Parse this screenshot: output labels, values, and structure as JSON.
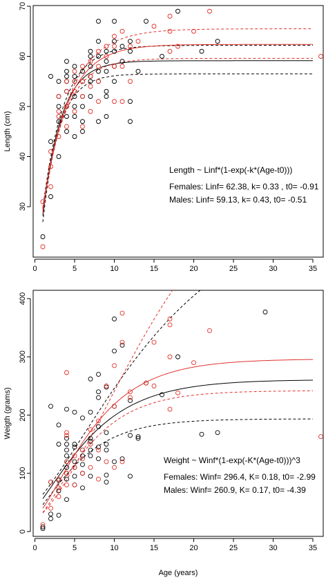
{
  "colors": {
    "females": "#e0302a",
    "males": "#000000"
  },
  "chart_data": [
    {
      "type": "scatter",
      "xlabel": "",
      "ylabel": "Length (cm)",
      "xlim": [
        0,
        36
      ],
      "ylim": [
        20,
        70
      ],
      "xticks": [
        0,
        5,
        10,
        15,
        20,
        25,
        30,
        35
      ],
      "yticks": [
        30,
        40,
        50,
        60,
        70
      ],
      "xtick_labels": [
        "0",
        "5",
        "10",
        "15",
        "20",
        "25",
        "30",
        "35"
      ],
      "ytick_labels": [
        "30",
        "40",
        "50",
        "60",
        "70"
      ],
      "annotations": [
        "Length ~ Linf*(1-exp(-k*(Age-t0)))",
        "Females: Linf= 62.38, k= 0.33 , t0= -0.91",
        "Males: Linf= 59.13, k= 0.43, t0= -0.51"
      ],
      "model": {
        "form": "vb_length",
        "xmax": 35
      },
      "curves": [
        {
          "group": "Males",
          "style": "solid",
          "params": {
            "inf": 59.13,
            "k": 0.43,
            "t0": -0.51
          }
        },
        {
          "group": "Males",
          "style": "dashed",
          "params": {
            "inf": 56.5,
            "k": 0.48,
            "t0": -0.35
          }
        },
        {
          "group": "Males",
          "style": "dashed",
          "params": {
            "inf": 62.2,
            "k": 0.38,
            "t0": -0.7
          }
        },
        {
          "group": "Females",
          "style": "solid",
          "params": {
            "inf": 62.38,
            "k": 0.33,
            "t0": -0.91
          }
        },
        {
          "group": "Females",
          "style": "dashed",
          "params": {
            "inf": 59.6,
            "k": 0.37,
            "t0": -0.78
          }
        },
        {
          "group": "Females",
          "style": "dashed",
          "params": {
            "inf": 65.5,
            "k": 0.29,
            "t0": -1.1
          }
        }
      ],
      "series": [
        {
          "group": "Males",
          "points": [
            [
              1,
              24
            ],
            [
              2,
              32
            ],
            [
              2,
              43
            ],
            [
              2,
              56
            ],
            [
              3,
              40
            ],
            [
              3,
              47
            ],
            [
              3,
              50
            ],
            [
              3,
              52
            ],
            [
              3,
              55
            ],
            [
              4,
              45
            ],
            [
              4,
              48
            ],
            [
              4,
              50
            ],
            [
              4,
              53
            ],
            [
              4,
              55
            ],
            [
              4,
              56
            ],
            [
              4,
              57
            ],
            [
              4,
              59
            ],
            [
              5,
              44
            ],
            [
              5,
              48
            ],
            [
              5,
              50
            ],
            [
              5,
              52
            ],
            [
              5,
              55
            ],
            [
              5,
              56
            ],
            [
              5,
              58
            ],
            [
              6,
              45
            ],
            [
              6,
              47
            ],
            [
              6,
              50
            ],
            [
              6,
              52
            ],
            [
              6,
              55
            ],
            [
              6,
              57
            ],
            [
              7,
              52
            ],
            [
              7,
              55
            ],
            [
              7,
              56
            ],
            [
              7,
              58
            ],
            [
              7,
              60
            ],
            [
              7,
              61
            ],
            [
              8,
              47
            ],
            [
              8,
              55
            ],
            [
              8,
              57
            ],
            [
              8,
              60
            ],
            [
              8,
              63
            ],
            [
              8,
              67
            ],
            [
              9,
              48
            ],
            [
              9,
              52
            ],
            [
              9,
              53
            ],
            [
              9,
              57
            ],
            [
              9,
              59
            ],
            [
              9,
              61
            ],
            [
              10,
              55
            ],
            [
              10,
              58
            ],
            [
              10,
              61
            ],
            [
              10,
              63
            ],
            [
              10,
              67
            ],
            [
              11,
              59
            ],
            [
              11,
              62
            ],
            [
              12,
              47
            ],
            [
              12,
              51
            ],
            [
              12,
              61
            ],
            [
              12,
              63
            ],
            [
              13,
              57
            ],
            [
              14,
              67
            ],
            [
              16,
              60
            ],
            [
              18,
              69
            ],
            [
              21,
              61
            ],
            [
              23,
              63
            ]
          ]
        },
        {
          "group": "Females",
          "points": [
            [
              1,
              22
            ],
            [
              1,
              31
            ],
            [
              2,
              34
            ],
            [
              2,
              38
            ],
            [
              2,
              41
            ],
            [
              3,
              44
            ],
            [
              3,
              48
            ],
            [
              3,
              49
            ],
            [
              3,
              52
            ],
            [
              4,
              46
            ],
            [
              4,
              50
            ],
            [
              4,
              53
            ],
            [
              4,
              55
            ],
            [
              5,
              49
            ],
            [
              5,
              53
            ],
            [
              5,
              55
            ],
            [
              5,
              57
            ],
            [
              6,
              46
            ],
            [
              6,
              52
            ],
            [
              6,
              55
            ],
            [
              6,
              58
            ],
            [
              7,
              49
            ],
            [
              7,
              54
            ],
            [
              7,
              56
            ],
            [
              7,
              59
            ],
            [
              8,
              51
            ],
            [
              8,
              55
            ],
            [
              8,
              58
            ],
            [
              8,
              61
            ],
            [
              9,
              60
            ],
            [
              9,
              62
            ],
            [
              10,
              51
            ],
            [
              10,
              58
            ],
            [
              10,
              62
            ],
            [
              10,
              64
            ],
            [
              11,
              51
            ],
            [
              11,
              58
            ],
            [
              11,
              65
            ],
            [
              12,
              55
            ],
            [
              12,
              62
            ],
            [
              13,
              63
            ],
            [
              15,
              66
            ],
            [
              17,
              61
            ],
            [
              17,
              65
            ],
            [
              17,
              68
            ],
            [
              18,
              62
            ],
            [
              20,
              65
            ],
            [
              22,
              69
            ],
            [
              36,
              60
            ]
          ]
        }
      ]
    },
    {
      "type": "scatter",
      "xlabel": "Age (years)",
      "ylabel": "Weigth (grams)",
      "xlim": [
        0,
        36
      ],
      "ylim": [
        0,
        420
      ],
      "xticks": [
        0,
        5,
        10,
        15,
        20,
        25,
        30,
        35
      ],
      "yticks": [
        0,
        100,
        200,
        300,
        400
      ],
      "xtick_labels": [
        "0",
        "5",
        "10",
        "15",
        "20",
        "25",
        "30",
        "35"
      ],
      "ytick_labels": [
        "0",
        "100",
        "200",
        "300",
        "400"
      ],
      "annotations": [
        "Weight ~ Winf*(1-exp(-K*(Age-t0)))^3",
        "Females: Winf= 296.4, K= 0.18, t0= -2.99",
        "Males: Winf= 260.9, K= 0.17, t0= -4.39"
      ],
      "model": {
        "form": "vb_weight",
        "xmax": 35
      },
      "curves": [
        {
          "group": "Males",
          "style": "solid",
          "params": {
            "inf": 260.9,
            "k": 0.17,
            "t0": -4.39
          }
        },
        {
          "group": "Males",
          "style": "dashed",
          "params": {
            "inf": 193.5,
            "k": 0.21,
            "t0": -3.6
          }
        },
        {
          "group": "Males",
          "style": "dashed",
          "params": {
            "inf": 560,
            "k": 0.085,
            "t0": -6.8
          }
        },
        {
          "group": "Females",
          "style": "solid",
          "params": {
            "inf": 296.4,
            "k": 0.18,
            "t0": -2.99
          }
        },
        {
          "group": "Females",
          "style": "dashed",
          "params": {
            "inf": 242,
            "k": 0.2,
            "t0": -2.6
          }
        },
        {
          "group": "Females",
          "style": "dashed",
          "params": {
            "inf": 700,
            "k": 0.085,
            "t0": -4.2
          }
        }
      ],
      "series": [
        {
          "group": "Males",
          "points": [
            [
              1,
              5
            ],
            [
              1,
              8
            ],
            [
              2,
              22
            ],
            [
              2,
              30
            ],
            [
              2,
              85
            ],
            [
              2,
              215
            ],
            [
              3,
              28
            ],
            [
              3,
              70
            ],
            [
              3,
              88
            ],
            [
              3,
              150
            ],
            [
              3,
              183
            ],
            [
              4,
              55
            ],
            [
              4,
              90
            ],
            [
              4,
              100
            ],
            [
              4,
              110
            ],
            [
              4,
              120
            ],
            [
              4,
              130
            ],
            [
              4,
              140
            ],
            [
              4,
              150
            ],
            [
              4,
              160
            ],
            [
              4,
              210
            ],
            [
              5,
              80
            ],
            [
              5,
              95
            ],
            [
              5,
              110
            ],
            [
              5,
              120
            ],
            [
              5,
              145
            ],
            [
              5,
              150
            ],
            [
              5,
              205
            ],
            [
              6,
              75
            ],
            [
              6,
              100
            ],
            [
              6,
              115
            ],
            [
              6,
              130
            ],
            [
              6,
              140
            ],
            [
              6,
              195
            ],
            [
              7,
              95
            ],
            [
              7,
              130
            ],
            [
              7,
              140
            ],
            [
              7,
              155
            ],
            [
              7,
              160
            ],
            [
              7,
              205
            ],
            [
              7,
              262
            ],
            [
              8,
              125
            ],
            [
              8,
              145
            ],
            [
              8,
              180
            ],
            [
              8,
              230
            ],
            [
              8,
              240
            ],
            [
              8,
              270
            ],
            [
              9,
              85
            ],
            [
              9,
              97
            ],
            [
              9,
              140
            ],
            [
              9,
              150
            ],
            [
              9,
              170
            ],
            [
              9,
              248
            ],
            [
              10,
              120
            ],
            [
              10,
              215
            ],
            [
              10,
              310
            ],
            [
              10,
              365
            ],
            [
              11,
              125
            ],
            [
              11,
              320
            ],
            [
              12,
              95
            ],
            [
              12,
              165
            ],
            [
              12,
              225
            ],
            [
              13,
              160
            ],
            [
              13,
              163
            ],
            [
              14,
              255
            ],
            [
              16,
              235
            ],
            [
              18,
              300
            ],
            [
              21,
              167
            ],
            [
              23,
              170
            ],
            [
              29,
              377
            ]
          ]
        },
        {
          "group": "Females",
          "points": [
            [
              1,
              12
            ],
            [
              2,
              40
            ],
            [
              2,
              85
            ],
            [
              3,
              60
            ],
            [
              3,
              75
            ],
            [
              3,
              90
            ],
            [
              4,
              80
            ],
            [
              4,
              100
            ],
            [
              4,
              120
            ],
            [
              4,
              165
            ],
            [
              4,
              170
            ],
            [
              4,
              273
            ],
            [
              5,
              80
            ],
            [
              5,
              110
            ],
            [
              5,
              130
            ],
            [
              6,
              100
            ],
            [
              6,
              125
            ],
            [
              6,
              140
            ],
            [
              7,
              110
            ],
            [
              7,
              150
            ],
            [
              7,
              175
            ],
            [
              8,
              90
            ],
            [
              8,
              140
            ],
            [
              8,
              190
            ],
            [
              9,
              120
            ],
            [
              9,
              250
            ],
            [
              10,
              110
            ],
            [
              10,
              215
            ],
            [
              10,
              285
            ],
            [
              11,
              120
            ],
            [
              11,
              325
            ],
            [
              11,
              375
            ],
            [
              12,
              230
            ],
            [
              12,
              240
            ],
            [
              14,
              255
            ],
            [
              15,
              250
            ],
            [
              15,
              325
            ],
            [
              17,
              210
            ],
            [
              17,
              300
            ],
            [
              17,
              355
            ],
            [
              17,
              365
            ],
            [
              18,
              238
            ],
            [
              20,
              290
            ],
            [
              22,
              345
            ],
            [
              36,
              163
            ]
          ]
        }
      ]
    }
  ]
}
